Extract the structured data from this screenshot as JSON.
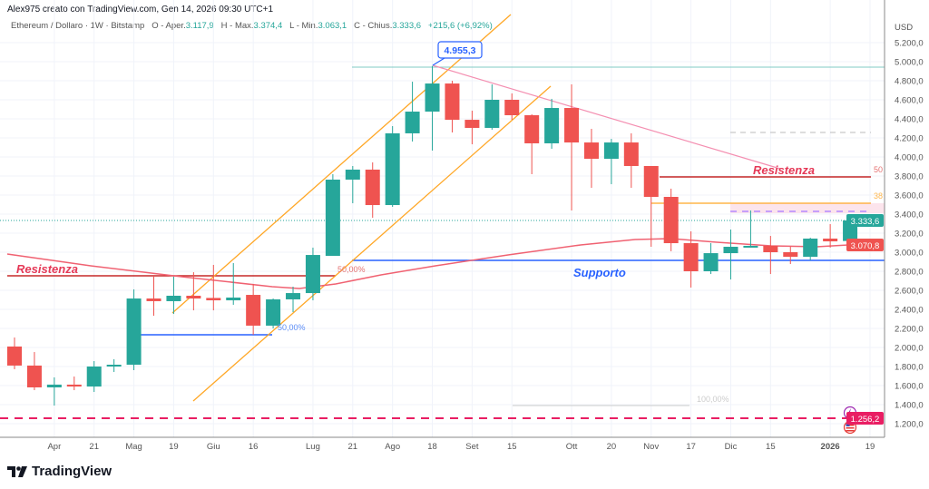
{
  "header": {
    "credit": "Alex975 creato con TradingView.com, Gen 14, 2026 09:30 UTC+1",
    "symbol": "Ethereum / Dollaro · 1W · Bitstamp",
    "open_label": "O - Aper.",
    "open": "3.117,9",
    "high_label": "H - Max.",
    "high": "3.374,4",
    "low_label": "L - Min.",
    "low": "3.063,1",
    "close_label": "C - Chius.",
    "close": "3.333,6",
    "change": "+215,6 (+6,92%)"
  },
  "colors": {
    "up": "#26a69a",
    "down": "#ef5350",
    "ma": "#f06272",
    "support": "#2962ff",
    "channel": "#ffa726",
    "resistance": "#c2185b"
  },
  "annotations": {
    "resistance_left": "Resistenza",
    "resistance_right": "Resistenza",
    "support": "Supporto",
    "fib_50_left": "50,00%",
    "fib_50_blue": "50,00%",
    "fib_100": "100,00%",
    "fib_50_right": "50",
    "fib_38_right": "38",
    "peak_callout": "4.955,3"
  },
  "axis_badges": {
    "last_price": "3.333,6",
    "ma_value": "3.070,8",
    "low_level": "1.256,2"
  },
  "icons": [
    "lightning-icon",
    "us-flag-icon"
  ],
  "logo": "TradingView",
  "chart_data": {
    "type": "candlestick",
    "timeframe": "1W",
    "currency": "USD",
    "ylim": [
      1100,
      5300
    ],
    "y_ticks": [
      "5.200,0",
      "5.000,0",
      "4.800,0",
      "4.600,0",
      "4.400,0",
      "4.200,0",
      "4.000,0",
      "3.800,0",
      "3.600,0",
      "3.400,0",
      "3.200,0",
      "3.000,0",
      "2.800,0",
      "2.600,0",
      "2.400,0",
      "2.200,0",
      "2.000,0",
      "1.800,0",
      "1.600,0",
      "1.400,0",
      "1.200,0"
    ],
    "y_tick_values": [
      5200,
      5000,
      4800,
      4600,
      4400,
      4200,
      4000,
      3800,
      3600,
      3400,
      3200,
      3000,
      2800,
      2600,
      2400,
      2200,
      2000,
      1800,
      1600,
      1400,
      1200
    ],
    "x_ticks": [
      "Apr",
      "21",
      "Mag",
      "19",
      "Giu",
      "16",
      "Lug",
      "21",
      "Ago",
      "18",
      "Set",
      "15",
      "Ott",
      "20",
      "Nov",
      "17",
      "Dic",
      "15",
      "2026",
      "19"
    ],
    "x_tick_candle_index": [
      2,
      4,
      6,
      8,
      10,
      12,
      15,
      17,
      19,
      21,
      23,
      25,
      28,
      30,
      32,
      34,
      36,
      38,
      41,
      43
    ],
    "ohlc": [
      [
        2010,
        2105,
        1771,
        1810
      ],
      [
        1810,
        1952,
        1552,
        1581
      ],
      [
        1581,
        1686,
        1390,
        1610
      ],
      [
        1610,
        1695,
        1552,
        1590
      ],
      [
        1590,
        1857,
        1533,
        1800
      ],
      [
        1800,
        1876,
        1743,
        1819
      ],
      [
        1819,
        2610,
        1762,
        2514
      ],
      [
        2514,
        2752,
        2333,
        2486
      ],
      [
        2486,
        2743,
        2352,
        2543
      ],
      [
        2543,
        2790,
        2390,
        2514
      ],
      [
        2520,
        2867,
        2390,
        2495
      ],
      [
        2495,
        2886,
        2448,
        2524
      ],
      [
        2552,
        2667,
        2133,
        2229
      ],
      [
        2229,
        2514,
        2200,
        2505
      ],
      [
        2505,
        2638,
        2371,
        2571
      ],
      [
        2571,
        3048,
        2495,
        2971
      ],
      [
        2962,
        3819,
        2962,
        3762
      ],
      [
        3762,
        3905,
        3514,
        3867
      ],
      [
        3867,
        3943,
        3362,
        3495
      ],
      [
        3495,
        4324,
        3476,
        4248
      ],
      [
        4248,
        4790,
        4162,
        4476
      ],
      [
        4476,
        4955.3,
        4067,
        4771
      ],
      [
        4771,
        4800,
        4257,
        4390
      ],
      [
        4390,
        4486,
        4133,
        4305
      ],
      [
        4305,
        4762,
        4286,
        4600
      ],
      [
        4600,
        4667,
        4390,
        4438
      ],
      [
        4438,
        4448,
        3819,
        4143
      ],
      [
        4143,
        4610,
        4086,
        4514
      ],
      [
        4514,
        4762,
        3438,
        4152
      ],
      [
        4152,
        4295,
        3676,
        3981
      ],
      [
        3981,
        4190,
        3714,
        4152
      ],
      [
        4152,
        4248,
        3676,
        3905
      ],
      [
        3905,
        3905,
        3057,
        3581
      ],
      [
        3581,
        3667,
        3010,
        3095
      ],
      [
        3095,
        3219,
        2629,
        2800
      ],
      [
        2800,
        3095,
        2771,
        2990
      ],
      [
        2990,
        3238,
        2714,
        3057
      ],
      [
        3057,
        3438,
        3048,
        3067
      ],
      [
        3067,
        3171,
        2771,
        3000
      ],
      [
        3000,
        3057,
        2876,
        2952
      ],
      [
        2952,
        3152,
        2914,
        3143
      ],
      [
        3143,
        3295,
        3048,
        3114
      ],
      [
        3117.9,
        3374.4,
        3063.1,
        3333.6
      ]
    ],
    "levels": {
      "support": 2910,
      "resistance_right": 3790,
      "resistance_left": 2740,
      "peak": 4955.3,
      "fib_38": 3510,
      "low_dashed": 1256.2,
      "last": 3333.6,
      "ma_last": 3070.8
    }
  }
}
